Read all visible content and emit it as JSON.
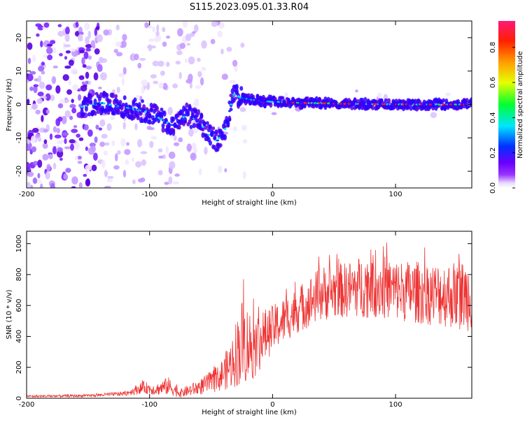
{
  "title": "S115.2023.095.01.33.R04",
  "chart_data": [
    {
      "type": "heatmap",
      "xlabel": "Height of straight line (km)",
      "ylabel": "Frequency (Hz)",
      "xlim": [
        -200,
        162
      ],
      "ylim": [
        -25,
        25
      ],
      "x_ticks": [
        -200,
        -100,
        0,
        100
      ],
      "y_ticks": [
        -20,
        -10,
        0,
        10,
        20
      ],
      "colorbar": {
        "label": "Normalized spectral amplitude",
        "range": [
          0,
          0.95
        ],
        "ticks": [
          0.0,
          0.2,
          0.4,
          0.6,
          0.8
        ]
      },
      "ridge": [
        {
          "x": -160,
          "f": -1.0
        },
        {
          "x": -140,
          "f": 0.5
        },
        {
          "x": -125,
          "f": -0.5
        },
        {
          "x": -110,
          "f": -1.5
        },
        {
          "x": -100,
          "f": -2.5
        },
        {
          "x": -90,
          "f": -4.5
        },
        {
          "x": -80,
          "f": -6.5
        },
        {
          "x": -70,
          "f": -3.0
        },
        {
          "x": -60,
          "f": -5.0
        },
        {
          "x": -52,
          "f": -9.0
        },
        {
          "x": -45,
          "f": -11.0
        },
        {
          "x": -38,
          "f": -7.0
        },
        {
          "x": -32,
          "f": 3.0
        },
        {
          "x": -25,
          "f": 2.0
        },
        {
          "x": -10,
          "f": 1.0
        },
        {
          "x": 20,
          "f": 0.5
        },
        {
          "x": 60,
          "f": 0.2
        },
        {
          "x": 100,
          "f": 0.0
        },
        {
          "x": 160,
          "f": 0.0
        }
      ]
    },
    {
      "type": "line",
      "xlabel": "Height of straight line (km)",
      "ylabel": "SNR (10 * v/v)",
      "xlim": [
        -200,
        162
      ],
      "ylim": [
        0,
        1080
      ],
      "x_ticks": [
        -200,
        -100,
        0,
        100
      ],
      "y_ticks": [
        0,
        200,
        400,
        600,
        800,
        1000
      ],
      "color": "#ee3333",
      "envelope": [
        {
          "x": -200,
          "lo": 5,
          "hi": 20
        },
        {
          "x": -150,
          "lo": 8,
          "hi": 25
        },
        {
          "x": -120,
          "lo": 15,
          "hi": 45
        },
        {
          "x": -105,
          "lo": 30,
          "hi": 110
        },
        {
          "x": -95,
          "lo": 20,
          "hi": 90
        },
        {
          "x": -85,
          "lo": 20,
          "hi": 140
        },
        {
          "x": -75,
          "lo": 5,
          "hi": 60
        },
        {
          "x": -60,
          "lo": 20,
          "hi": 120
        },
        {
          "x": -45,
          "lo": 40,
          "hi": 200
        },
        {
          "x": -35,
          "lo": 60,
          "hi": 350
        },
        {
          "x": -25,
          "lo": 80,
          "hi": 650
        },
        {
          "x": -15,
          "lo": 120,
          "hi": 550
        },
        {
          "x": 0,
          "lo": 300,
          "hi": 600
        },
        {
          "x": 20,
          "lo": 420,
          "hi": 720
        },
        {
          "x": 40,
          "lo": 500,
          "hi": 860
        },
        {
          "x": 60,
          "lo": 520,
          "hi": 880
        },
        {
          "x": 80,
          "lo": 520,
          "hi": 950
        },
        {
          "x": 100,
          "lo": 500,
          "hi": 900
        },
        {
          "x": 130,
          "lo": 470,
          "hi": 880
        },
        {
          "x": 162,
          "lo": 430,
          "hi": 900
        }
      ]
    }
  ]
}
